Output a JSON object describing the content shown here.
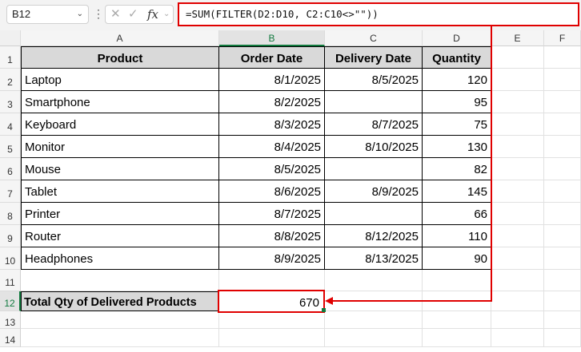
{
  "formula_bar": {
    "name_box": "B12",
    "formula": "=SUM(FILTER(D2:D10, C2:C10<>\"\"))",
    "fx_label": "fx"
  },
  "columns": [
    "A",
    "B",
    "C",
    "D",
    "E",
    "F"
  ],
  "rows": [
    "1",
    "2",
    "3",
    "4",
    "5",
    "6",
    "7",
    "8",
    "9",
    "10",
    "11",
    "12",
    "13",
    "14"
  ],
  "table": {
    "headers": [
      "Product",
      "Order Date",
      "Delivery Date",
      "Quantity"
    ],
    "rows": [
      [
        "Laptop",
        "8/1/2025",
        "8/5/2025",
        "120"
      ],
      [
        "Smartphone",
        "8/2/2025",
        "",
        "95"
      ],
      [
        "Keyboard",
        "8/3/2025",
        "8/7/2025",
        "75"
      ],
      [
        "Monitor",
        "8/4/2025",
        "8/10/2025",
        "130"
      ],
      [
        "Mouse",
        "8/5/2025",
        "",
        "82"
      ],
      [
        "Tablet",
        "8/6/2025",
        "8/9/2025",
        "145"
      ],
      [
        "Printer",
        "8/7/2025",
        "",
        "66"
      ],
      [
        "Router",
        "8/8/2025",
        "8/12/2025",
        "110"
      ],
      [
        "Headphones",
        "8/9/2025",
        "8/13/2025",
        "90"
      ]
    ]
  },
  "total": {
    "label": "Total Qty of Delivered Products",
    "value": "670"
  },
  "colors": {
    "highlight": "#e00000",
    "selection": "#117a3e",
    "header_fill": "#d9d9d9"
  }
}
